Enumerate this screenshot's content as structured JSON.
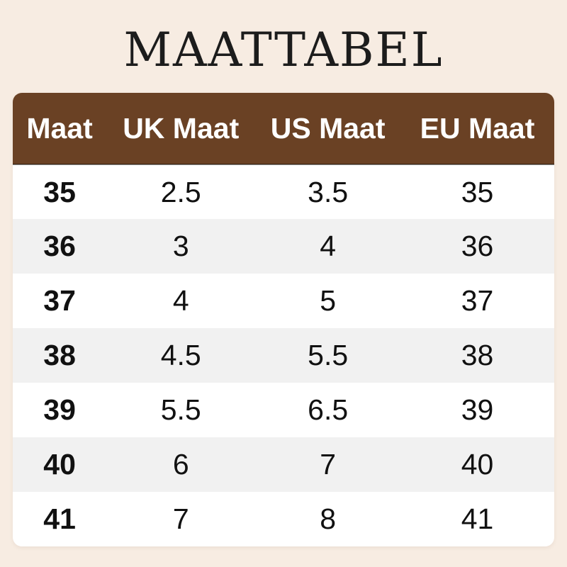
{
  "title": {
    "text": "MAATTABEL"
  },
  "colors": {
    "background": "#f7ece2",
    "header_bg": "#6a4124",
    "header_text": "#ffffff",
    "row_bg": "#ffffff",
    "row_alt_bg": "#f1f1f1",
    "text": "#111111",
    "title_text": "#1c1c1c"
  },
  "chart_data": {
    "type": "table",
    "title": "MAATTABEL",
    "columns": [
      "Maat",
      "UK Maat",
      "US Maat",
      "EU Maat"
    ],
    "rows": [
      [
        "35",
        "2.5",
        "3.5",
        "35"
      ],
      [
        "36",
        "3",
        "4",
        "36"
      ],
      [
        "37",
        "4",
        "5",
        "37"
      ],
      [
        "38",
        "4.5",
        "5.5",
        "38"
      ],
      [
        "39",
        "5.5",
        "6.5",
        "39"
      ],
      [
        "40",
        "6",
        "7",
        "40"
      ],
      [
        "41",
        "7",
        "8",
        "41"
      ]
    ]
  }
}
